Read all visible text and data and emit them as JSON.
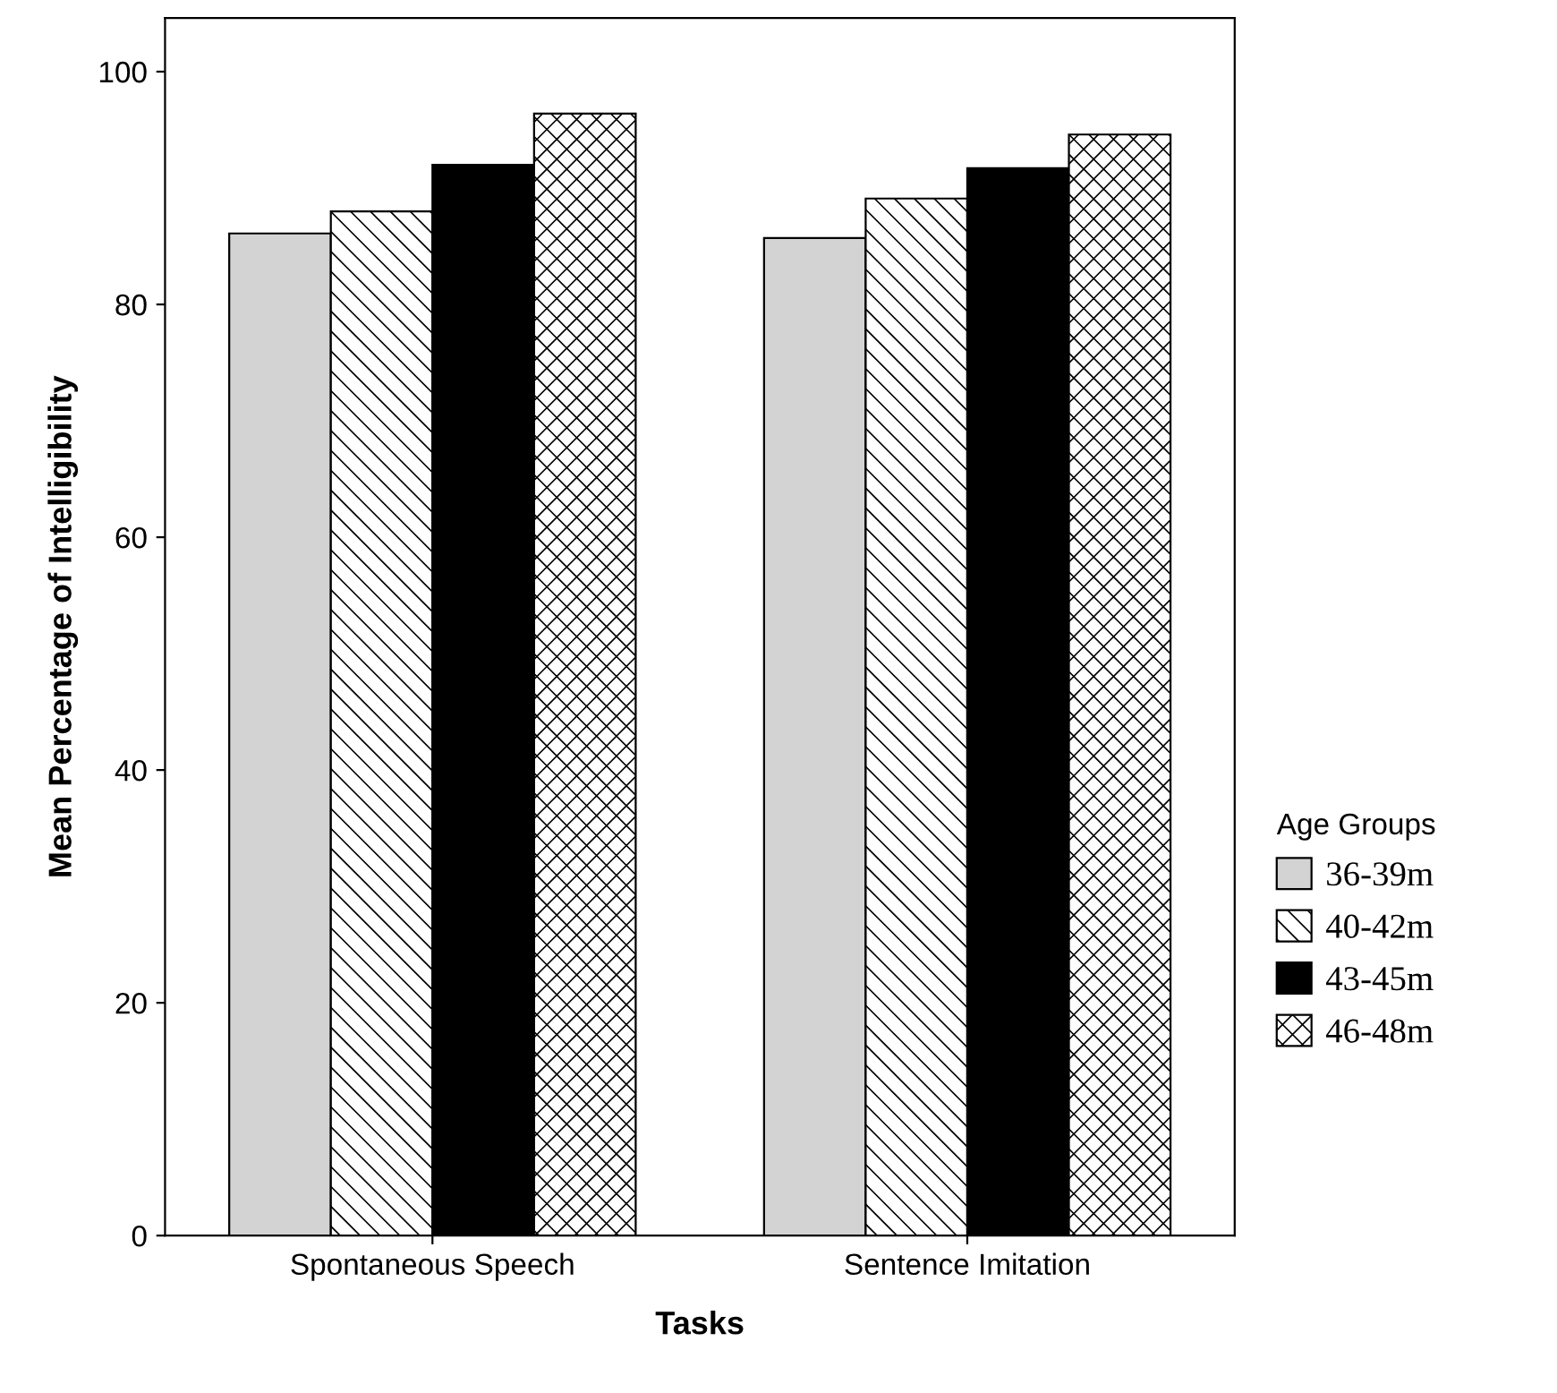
{
  "chart_data": {
    "type": "bar",
    "xlabel": "Tasks",
    "ylabel": "Mean Percentage of Intelligibility",
    "legend_title": "Age Groups",
    "categories": [
      "Spontaneous Speech",
      "Sentence Imitation"
    ],
    "series": [
      {
        "name": "36-39m",
        "color": "#d3d3d3",
        "values": [
          86.1,
          85.7
        ]
      },
      {
        "name": "40-42m",
        "color": "#000000",
        "values": [
          88.0,
          89.1
        ]
      },
      {
        "name": "43-45m",
        "color": "#000000",
        "values": [
          92.0,
          91.7
        ]
      },
      {
        "name": "46-48m",
        "color": "#000000",
        "values": [
          96.4,
          94.6
        ]
      }
    ],
    "ylim": [
      0,
      104.6
    ],
    "yticks": [
      0,
      20,
      40,
      60,
      80,
      100
    ],
    "grid": false,
    "legend": "right"
  }
}
